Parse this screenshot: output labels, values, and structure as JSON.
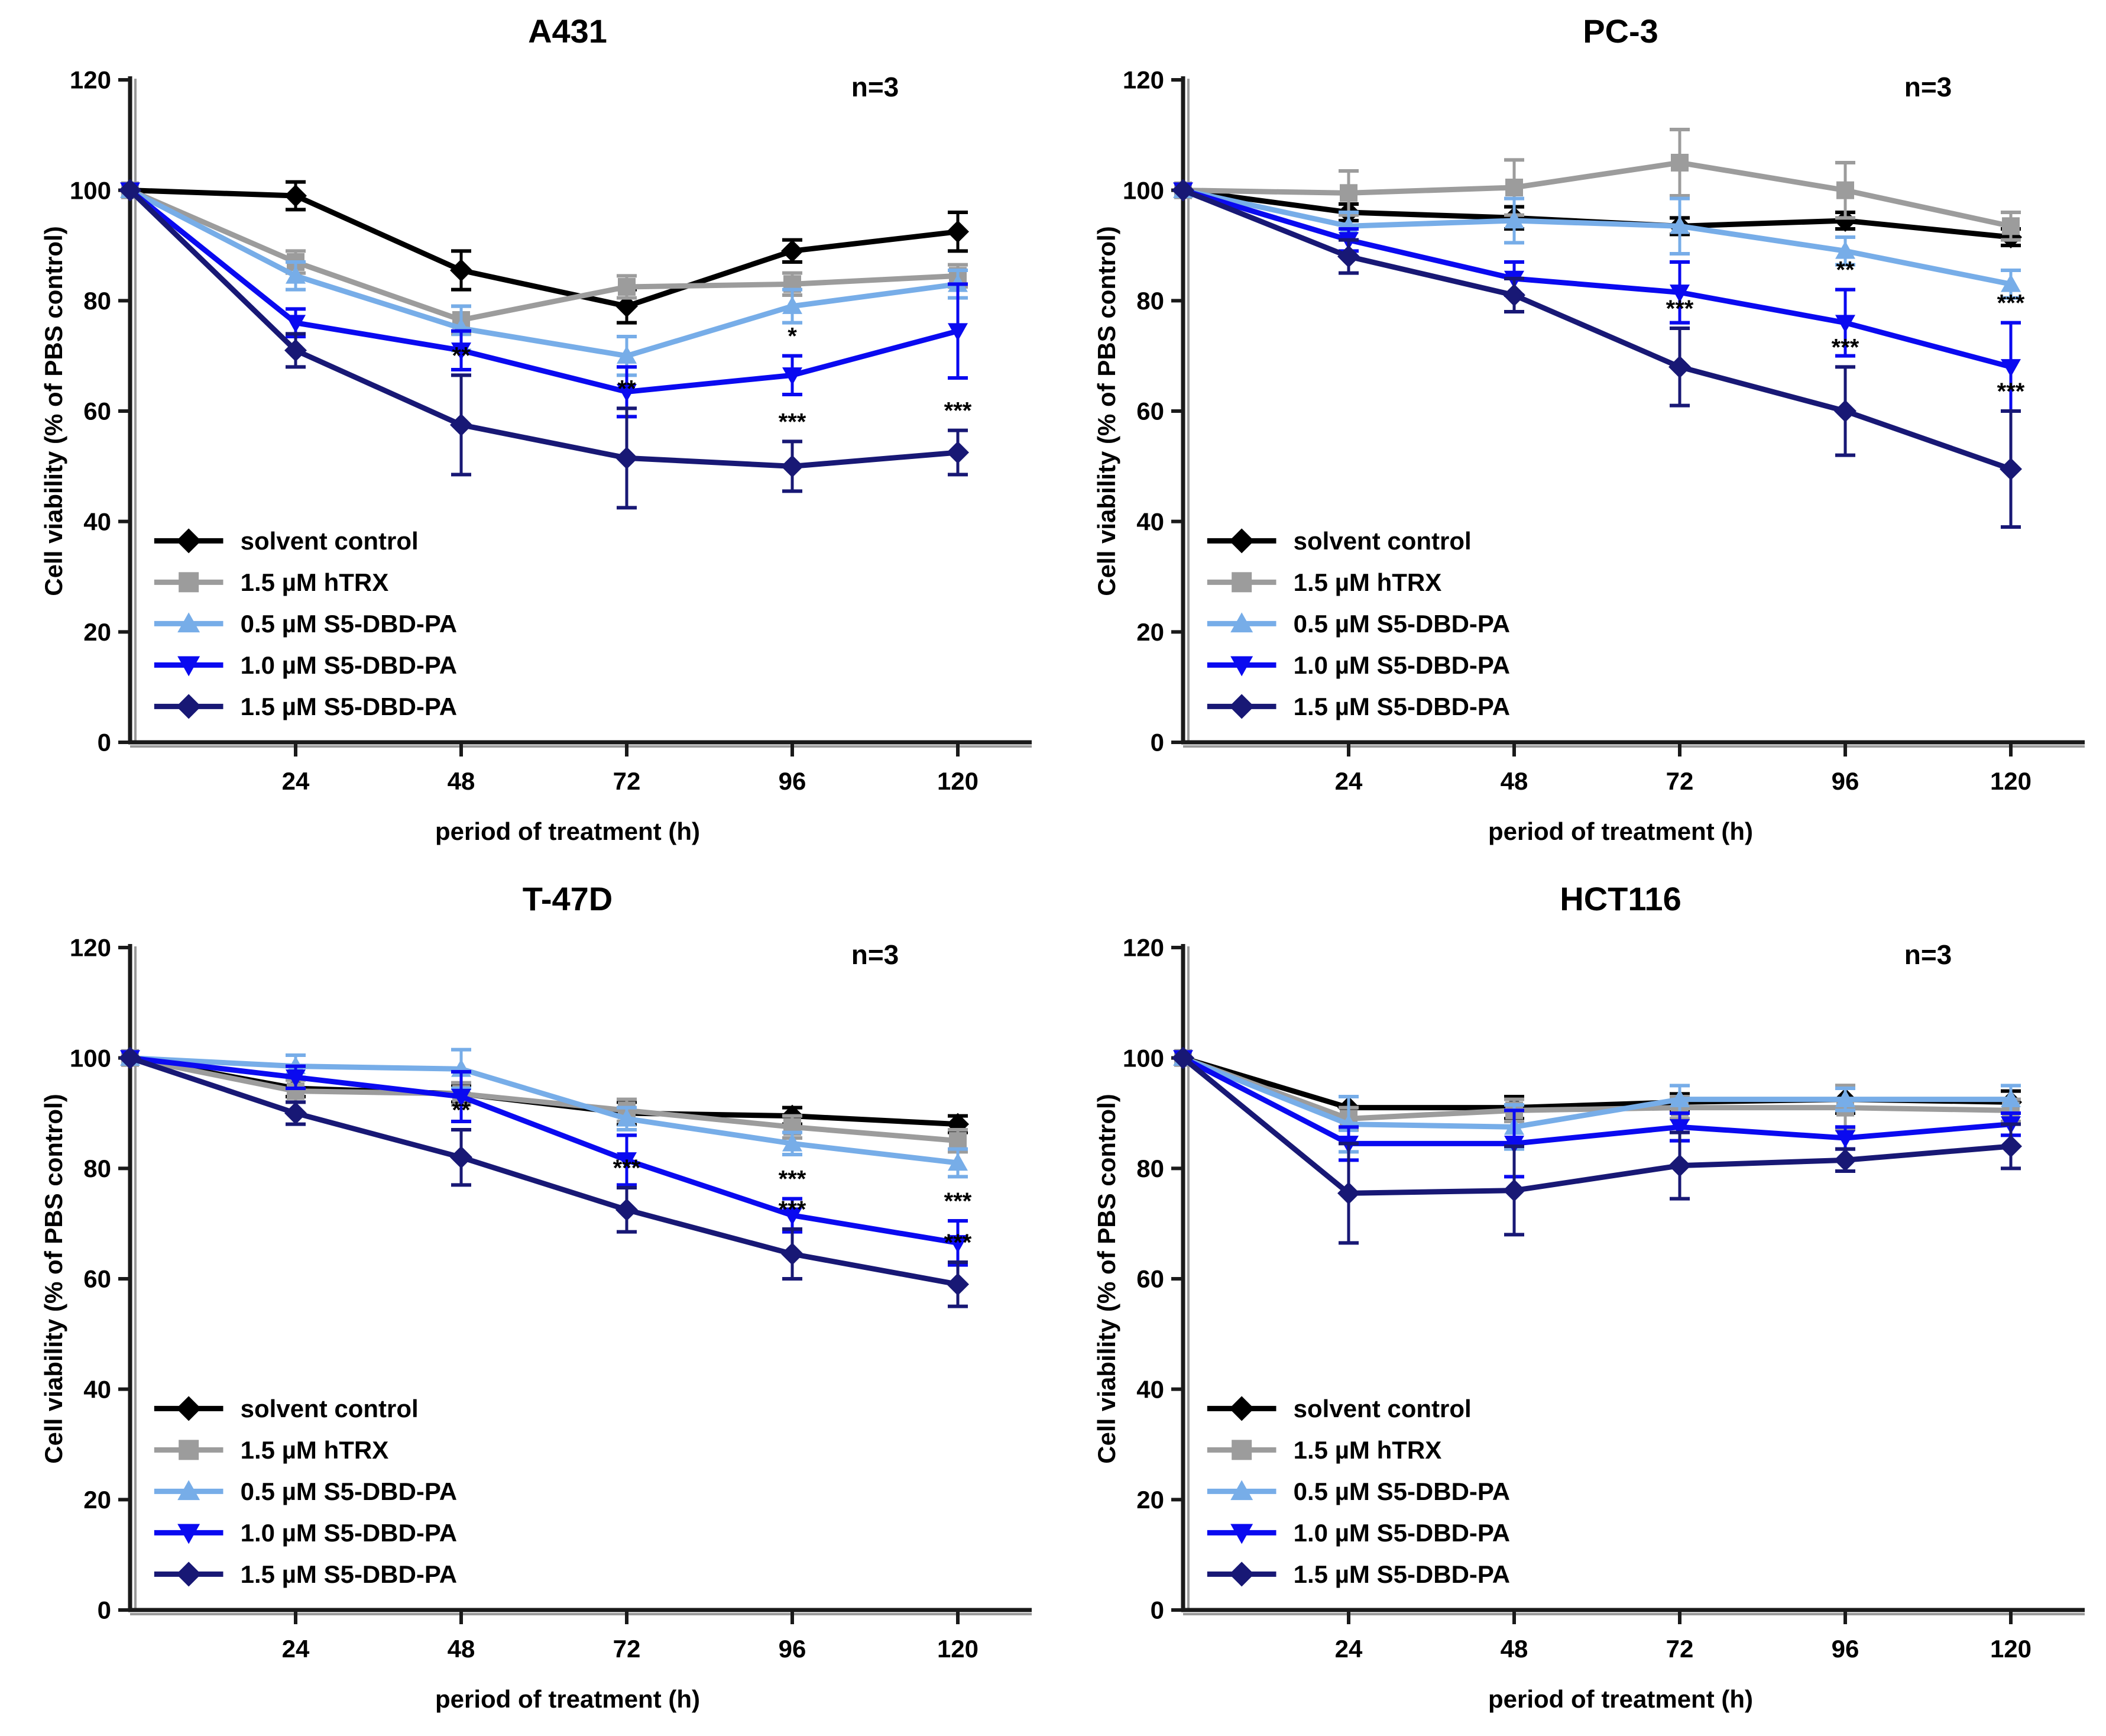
{
  "figure": {
    "y_axis_label": "Cell viability (% of PBS control)",
    "x_axis_label": "period of treatment (h)",
    "replicate_label": "n=3",
    "x_ticks": [
      24,
      48,
      72,
      96,
      120
    ],
    "y_ticks": [
      0,
      20,
      40,
      60,
      80,
      100,
      120
    ],
    "y_range": [
      0,
      120
    ],
    "axis_color": "#1a1a1a",
    "axis_shadow_color": "#9a9a9a",
    "legend": [
      {
        "label": "solvent control",
        "color": "#000000",
        "marker": "diamond"
      },
      {
        "label": "1.5 µM hTRX",
        "color": "#9c9c9c",
        "marker": "square"
      },
      {
        "label": "0.5 µM S5-DBD-PA",
        "color": "#77ade8",
        "marker": "triangle-up"
      },
      {
        "label": "1.0 µM S5-DBD-PA",
        "color": "#0a0af0",
        "marker": "triangle-down"
      },
      {
        "label": "1.5 µM S5-DBD-PA",
        "color": "#181875",
        "marker": "diamond"
      }
    ]
  },
  "chart_data": [
    {
      "type": "line",
      "title": "A431",
      "replicate_label": "n=3",
      "xlabel": "period of treatment (h)",
      "ylabel": "Cell viability (% of PBS control)",
      "x": [
        0,
        24,
        48,
        72,
        96,
        120
      ],
      "ylim": [
        0,
        120
      ],
      "series": [
        {
          "name": "solvent control",
          "color": "#000000",
          "marker": "diamond",
          "values": [
            100,
            99,
            85.5,
            79,
            89,
            92.5
          ],
          "errors": [
            0,
            2.5,
            3.5,
            3,
            2,
            3.5
          ]
        },
        {
          "name": "1.5 µM hTRX",
          "color": "#9c9c9c",
          "marker": "square",
          "values": [
            100,
            87,
            76.5,
            82.5,
            83,
            84.5
          ],
          "errors": [
            0,
            2,
            2.5,
            2,
            2,
            2
          ]
        },
        {
          "name": "0.5 µM S5-DBD-PA",
          "color": "#77ade8",
          "marker": "triangle-up",
          "values": [
            100,
            84.5,
            75,
            70,
            79,
            83
          ],
          "errors": [
            0,
            2.5,
            4,
            3.5,
            3,
            2.5
          ]
        },
        {
          "name": "1.0 µM S5-DBD-PA",
          "color": "#0a0af0",
          "marker": "triangle-down",
          "values": [
            100,
            76,
            71,
            63.5,
            66.5,
            74.5
          ],
          "errors": [
            0,
            2.5,
            3.5,
            4.5,
            3.5,
            8.5
          ]
        },
        {
          "name": "1.5 µM S5-DBD-PA",
          "color": "#181875",
          "marker": "diamond",
          "values": [
            100,
            71,
            57.5,
            51.5,
            50,
            52.5
          ],
          "errors": [
            0,
            3,
            9,
            9,
            4.5,
            4
          ]
        }
      ],
      "annotations": [
        {
          "x": 48,
          "series": 4,
          "text": "**"
        },
        {
          "x": 72,
          "series": 4,
          "text": "**"
        },
        {
          "x": 96,
          "series": 3,
          "text": "*"
        },
        {
          "x": 96,
          "series": 4,
          "text": "***"
        },
        {
          "x": 120,
          "series": 4,
          "text": "***"
        }
      ]
    },
    {
      "type": "line",
      "title": "PC-3",
      "replicate_label": "n=3",
      "xlabel": "period of treatment (h)",
      "ylabel": "Cell viability (% of PBS control)",
      "x": [
        0,
        24,
        48,
        72,
        96,
        120
      ],
      "ylim": [
        0,
        120
      ],
      "series": [
        {
          "name": "solvent control",
          "color": "#000000",
          "marker": "diamond",
          "values": [
            100,
            96,
            95,
            93.5,
            94.5,
            91.5
          ],
          "errors": [
            0,
            1.5,
            2,
            1.5,
            1.5,
            1.5
          ]
        },
        {
          "name": "1.5 µM hTRX",
          "color": "#9c9c9c",
          "marker": "square",
          "values": [
            100,
            99.5,
            100.5,
            105,
            100,
            93.5
          ],
          "errors": [
            0,
            4,
            5,
            6,
            5,
            2.5
          ]
        },
        {
          "name": "0.5 µM S5-DBD-PA",
          "color": "#77ade8",
          "marker": "triangle-up",
          "values": [
            100,
            93.5,
            94.5,
            93.5,
            89,
            83
          ],
          "errors": [
            0,
            2.5,
            4,
            5,
            2.5,
            2.5
          ]
        },
        {
          "name": "1.0 µM S5-DBD-PA",
          "color": "#0a0af0",
          "marker": "triangle-down",
          "values": [
            100,
            91,
            84,
            81.5,
            76,
            68
          ],
          "errors": [
            0,
            2,
            3,
            5.5,
            6,
            8
          ]
        },
        {
          "name": "1.5 µM S5-DBD-PA",
          "color": "#181875",
          "marker": "diamond",
          "values": [
            100,
            88,
            81,
            68,
            60,
            49.5
          ],
          "errors": [
            0,
            3,
            3,
            7,
            8,
            10.5
          ]
        }
      ],
      "annotations": [
        {
          "x": 72,
          "series": 4,
          "text": "***"
        },
        {
          "x": 96,
          "series": 3,
          "text": "**"
        },
        {
          "x": 96,
          "series": 4,
          "text": "***"
        },
        {
          "x": 120,
          "series": 3,
          "text": "***"
        },
        {
          "x": 120,
          "series": 4,
          "text": "***"
        }
      ]
    },
    {
      "type": "line",
      "title": "T-47D",
      "replicate_label": "n=3",
      "xlabel": "period of treatment (h)",
      "ylabel": "Cell viability (% of PBS control)",
      "x": [
        0,
        24,
        48,
        72,
        96,
        120
      ],
      "ylim": [
        0,
        120
      ],
      "series": [
        {
          "name": "solvent control",
          "color": "#000000",
          "marker": "diamond",
          "values": [
            100,
            94.5,
            93.5,
            90,
            89.5,
            88
          ],
          "errors": [
            0,
            1.5,
            1.5,
            2,
            1.5,
            1.5
          ]
        },
        {
          "name": "1.5 µM hTRX",
          "color": "#9c9c9c",
          "marker": "square",
          "values": [
            100,
            94,
            93.5,
            90.5,
            87.5,
            85
          ],
          "errors": [
            0,
            2,
            2,
            2,
            2,
            2
          ]
        },
        {
          "name": "0.5 µM S5-DBD-PA",
          "color": "#77ade8",
          "marker": "triangle-up",
          "values": [
            100,
            98.5,
            98,
            89,
            84.5,
            81
          ],
          "errors": [
            0,
            2,
            3.5,
            2,
            2,
            2.5
          ]
        },
        {
          "name": "1.0 µM S5-DBD-PA",
          "color": "#0a0af0",
          "marker": "triangle-down",
          "values": [
            100,
            96.5,
            93,
            81.5,
            71.5,
            66.5
          ],
          "errors": [
            0,
            2,
            4.5,
            4.5,
            3,
            4
          ]
        },
        {
          "name": "1.5 µM S5-DBD-PA",
          "color": "#181875",
          "marker": "diamond",
          "values": [
            100,
            90,
            82,
            72.5,
            64.5,
            59
          ],
          "errors": [
            0,
            2,
            5,
            4,
            4.5,
            4
          ]
        }
      ],
      "annotations": [
        {
          "x": 48,
          "series": 4,
          "text": "**"
        },
        {
          "x": 72,
          "series": 4,
          "text": "***"
        },
        {
          "x": 96,
          "series": 3,
          "text": "***"
        },
        {
          "x": 96,
          "series": 4,
          "text": "***"
        },
        {
          "x": 120,
          "series": 3,
          "text": "***"
        },
        {
          "x": 120,
          "series": 4,
          "text": "***"
        }
      ]
    },
    {
      "type": "line",
      "title": "HCT116",
      "replicate_label": "n=3",
      "xlabel": "period of treatment (h)",
      "ylabel": "Cell viability (% of PBS control)",
      "x": [
        0,
        24,
        48,
        72,
        96,
        120
      ],
      "ylim": [
        0,
        120
      ],
      "series": [
        {
          "name": "solvent control",
          "color": "#000000",
          "marker": "diamond",
          "values": [
            100,
            91,
            91,
            92,
            92.5,
            92
          ],
          "errors": [
            0,
            2,
            2,
            1.5,
            2.5,
            2
          ]
        },
        {
          "name": "1.5 µM hTRX",
          "color": "#9c9c9c",
          "marker": "square",
          "values": [
            100,
            89,
            90.5,
            91,
            91,
            90.5
          ],
          "errors": [
            0,
            2,
            2,
            2,
            4,
            2
          ]
        },
        {
          "name": "0.5 µM S5-DBD-PA",
          "color": "#77ade8",
          "marker": "triangle-up",
          "values": [
            100,
            88,
            87.5,
            92.5,
            92.5,
            92.5
          ],
          "errors": [
            0,
            5,
            4,
            2.5,
            2,
            2.5
          ]
        },
        {
          "name": "1.0 µM S5-DBD-PA",
          "color": "#0a0af0",
          "marker": "triangle-down",
          "values": [
            100,
            84.5,
            84.5,
            87.5,
            85.5,
            88
          ],
          "errors": [
            0,
            3,
            6,
            2.5,
            2,
            2
          ]
        },
        {
          "name": "1.5 µM S5-DBD-PA",
          "color": "#181875",
          "marker": "diamond",
          "values": [
            100,
            75.5,
            76,
            80.5,
            81.5,
            84
          ],
          "errors": [
            0,
            9,
            8,
            6,
            2,
            4
          ]
        }
      ],
      "annotations": []
    }
  ]
}
